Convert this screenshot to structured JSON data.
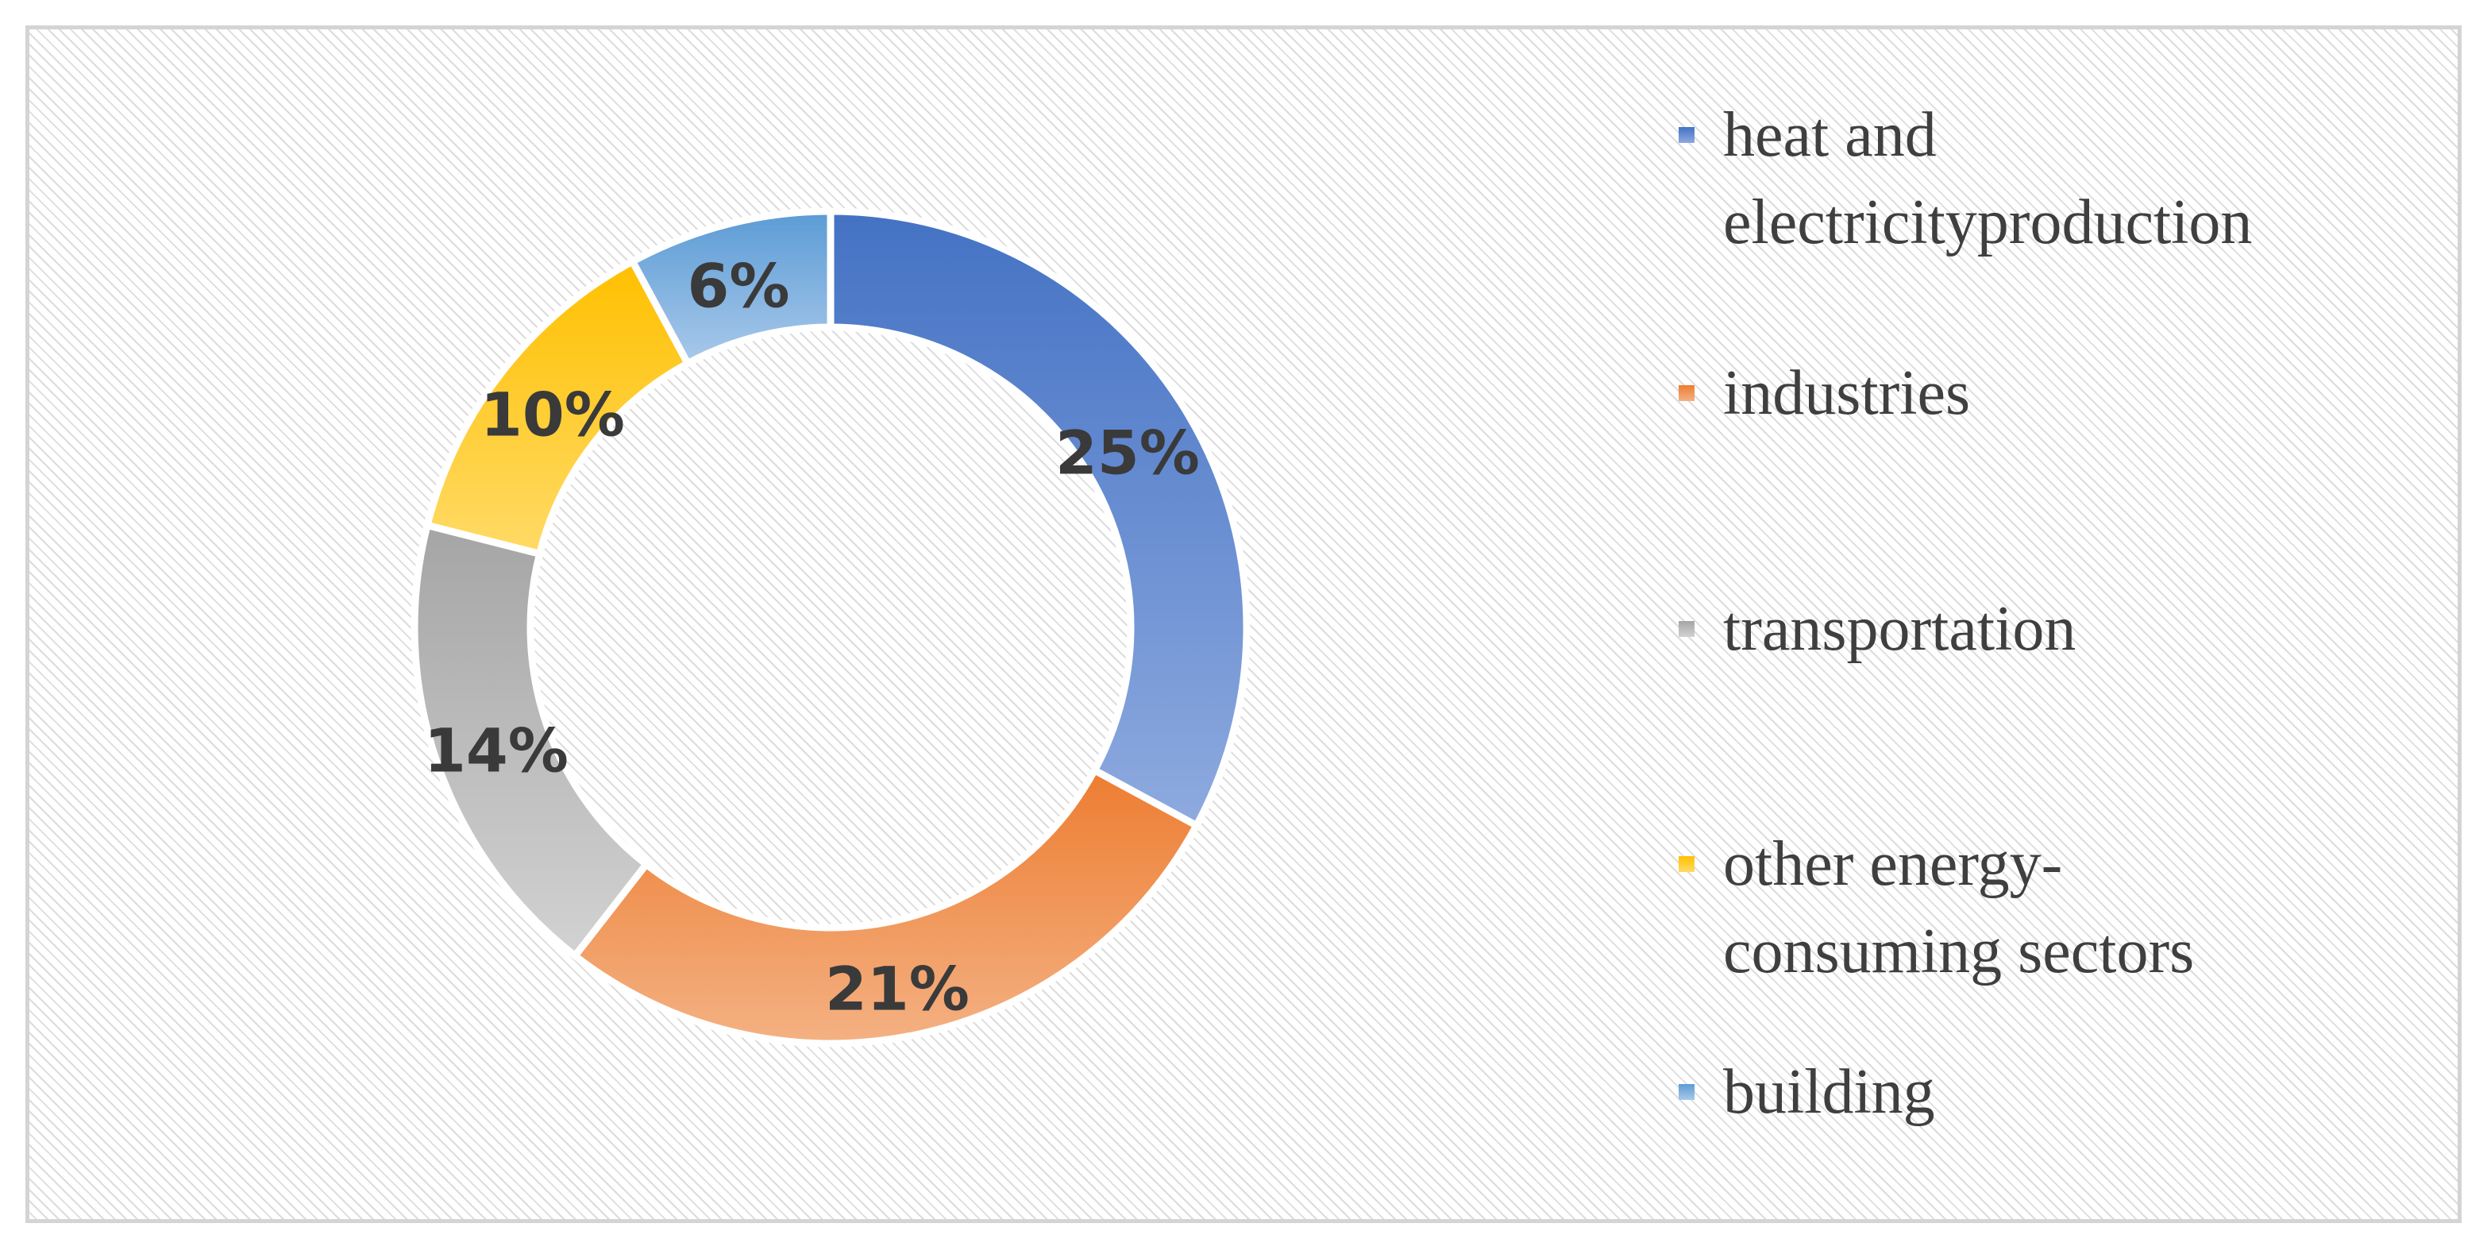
{
  "chart_data": {
    "type": "pie",
    "variant": "donut",
    "categories": [
      "heat and\nelectricityproduction",
      "industries",
      "transportation",
      "other energy-\nconsuming sectors",
      "building"
    ],
    "values": [
      25,
      21,
      14,
      10,
      6
    ],
    "value_labels": [
      "25%",
      "21%",
      "14%",
      "10%",
      "6%"
    ],
    "colors": [
      "#4472c4",
      "#ed7d31",
      "#a5a5a5",
      "#ffc000",
      "#5b9bd5"
    ],
    "colors_light": [
      "#8eaadf",
      "#f4b183",
      "#d2d2d2",
      "#ffda66",
      "#a9c9ea"
    ],
    "title": "",
    "legend_position": "right"
  }
}
